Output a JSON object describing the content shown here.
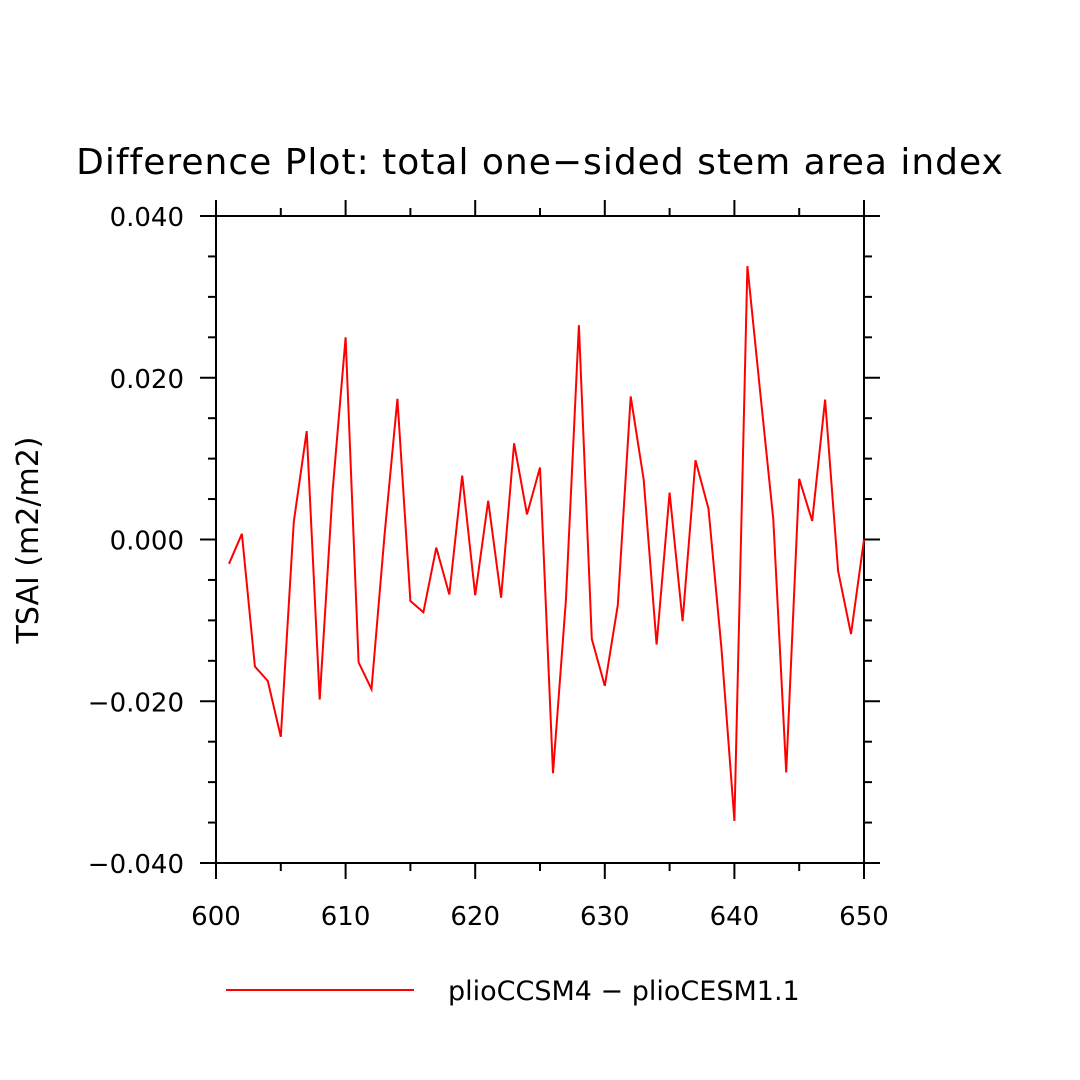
{
  "chart_data": {
    "type": "line",
    "title": "Difference Plot: total one−sided stem area index",
    "xlabel": "",
    "ylabel": "TSAI  (m2/m2)",
    "xlim": [
      600,
      650
    ],
    "ylim": [
      -0.04,
      0.04
    ],
    "x_major_ticks": [
      600,
      610,
      620,
      630,
      640,
      650
    ],
    "x_tick_labels": [
      "600",
      "610",
      "620",
      "630",
      "640",
      "650"
    ],
    "y_major_ticks": [
      -0.04,
      -0.02,
      0.0,
      0.02,
      0.04
    ],
    "y_tick_labels": [
      "−0.040",
      "−0.020",
      "0.000",
      "0.020",
      "0.040"
    ],
    "grid": false,
    "legend_position": "bottom",
    "series": [
      {
        "name": "plioCCSM4 − plioCESM1.1",
        "color": "#ff0000",
        "x": [
          601,
          602,
          603,
          604,
          605,
          606,
          607,
          608,
          609,
          610,
          611,
          612,
          613,
          614,
          615,
          616,
          617,
          618,
          619,
          620,
          621,
          622,
          623,
          624,
          625,
          626,
          627,
          628,
          629,
          630,
          631,
          632,
          633,
          634,
          635,
          636,
          637,
          638,
          639,
          640,
          641,
          642,
          643,
          644,
          645,
          646,
          647,
          648,
          649,
          650
        ],
        "values": [
          -0.003,
          0.0007,
          -0.0157,
          -0.0175,
          -0.0244,
          0.0022,
          0.0134,
          -0.0198,
          0.006,
          0.025,
          -0.0152,
          -0.0185,
          0.0005,
          0.0174,
          -0.0076,
          -0.009,
          -0.001,
          -0.0068,
          0.0079,
          -0.0069,
          0.0048,
          -0.0072,
          0.0119,
          0.0031,
          0.0089,
          -0.0289,
          -0.0075,
          0.0265,
          -0.0123,
          -0.0181,
          -0.0081,
          0.0177,
          0.0074,
          -0.013,
          0.0058,
          -0.0101,
          0.0098,
          0.0038,
          -0.0134,
          -0.0348,
          0.0338,
          0.0181,
          0.0025,
          -0.0288,
          0.0075,
          0.0023,
          0.0173,
          -0.0039,
          -0.0117,
          0.0
        ]
      }
    ]
  }
}
